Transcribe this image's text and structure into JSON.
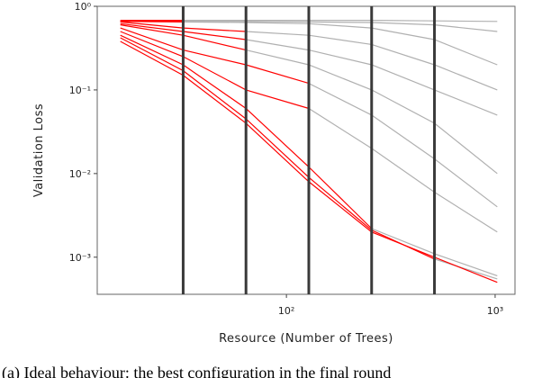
{
  "chart_data": {
    "type": "line",
    "xlabel": "Resource (Number of Trees)",
    "ylabel": "Validation Loss",
    "caption": "(a) Ideal behaviour: the best configuration in the final round",
    "xlog": true,
    "ylog": true,
    "xlim": [
      12.4,
      1245
    ],
    "ylim": [
      0.00036,
      1
    ],
    "xticks": [
      {
        "value": 100,
        "label": "10²"
      },
      {
        "value": 1000,
        "label": "10³"
      }
    ],
    "yticks": [
      {
        "value": 0.001,
        "label": "10⁻³"
      },
      {
        "value": 0.01,
        "label": "10⁻²"
      },
      {
        "value": 0.1,
        "label": "10⁻¹"
      },
      {
        "value": 1,
        "label": "10⁰"
      }
    ],
    "vlines": [
      32,
      64,
      128,
      256,
      512
    ],
    "vline_color": "#3a3a3a",
    "x": [
      16,
      32,
      64,
      128,
      256,
      512,
      1024
    ],
    "series": [
      {
        "color": "#b0b0b0",
        "values": [
          null,
          0.68,
          0.68,
          0.68,
          0.68,
          0.67,
          0.66
        ]
      },
      {
        "color": "#b0b0b0",
        "values": [
          null,
          0.66,
          0.66,
          0.65,
          0.64,
          0.6,
          0.5
        ]
      },
      {
        "color": "#b0b0b0",
        "values": [
          null,
          0.65,
          0.64,
          0.62,
          0.55,
          0.4,
          0.2
        ]
      },
      {
        "color": "#b0b0b0",
        "values": [
          null,
          null,
          0.5,
          0.45,
          0.35,
          0.2,
          0.1
        ]
      },
      {
        "color": "#b0b0b0",
        "values": [
          null,
          null,
          0.4,
          0.3,
          0.2,
          0.1,
          0.05
        ]
      },
      {
        "color": "#b0b0b0",
        "values": [
          null,
          null,
          0.3,
          0.2,
          0.1,
          0.04,
          0.01
        ]
      },
      {
        "color": "#b0b0b0",
        "values": [
          null,
          null,
          null,
          0.12,
          0.05,
          0.015,
          0.004
        ]
      },
      {
        "color": "#b0b0b0",
        "values": [
          null,
          null,
          null,
          0.06,
          0.02,
          0.006,
          0.002
        ]
      },
      {
        "color": "#b0b0b0",
        "values": [
          null,
          null,
          null,
          null,
          0.0022,
          0.0011,
          0.0006
        ]
      },
      {
        "color": "#b0b0b0",
        "values": [
          null,
          null,
          null,
          null,
          null,
          0.00095,
          0.00055
        ]
      },
      {
        "color": "#ff0000",
        "values": [
          0.68,
          0.68,
          null,
          null,
          null,
          null,
          null
        ]
      },
      {
        "color": "#ff0000",
        "values": [
          0.67,
          0.66,
          null,
          null,
          null,
          null,
          null
        ]
      },
      {
        "color": "#ff0000",
        "values": [
          0.66,
          0.65,
          null,
          null,
          null,
          null,
          null
        ]
      },
      {
        "color": "#ff0000",
        "values": [
          0.65,
          0.55,
          0.5,
          null,
          null,
          null,
          null
        ]
      },
      {
        "color": "#ff0000",
        "values": [
          0.62,
          0.5,
          0.4,
          null,
          null,
          null,
          null
        ]
      },
      {
        "color": "#ff0000",
        "values": [
          0.6,
          0.45,
          0.3,
          null,
          null,
          null,
          null
        ]
      },
      {
        "color": "#ff0000",
        "values": [
          0.55,
          0.3,
          0.2,
          0.12,
          null,
          null,
          null
        ]
      },
      {
        "color": "#ff0000",
        "values": [
          0.5,
          0.25,
          0.1,
          0.06,
          null,
          null,
          null
        ]
      },
      {
        "color": "#ff0000",
        "values": [
          0.45,
          0.2,
          0.06,
          0.012,
          0.0022,
          null,
          null
        ]
      },
      {
        "color": "#ff0000",
        "values": [
          0.42,
          0.17,
          0.045,
          0.009,
          0.0021,
          0.00095,
          null
        ]
      },
      {
        "color": "#ff0000",
        "values": [
          0.38,
          0.15,
          0.04,
          0.008,
          0.002,
          0.001,
          0.0005
        ]
      }
    ]
  }
}
